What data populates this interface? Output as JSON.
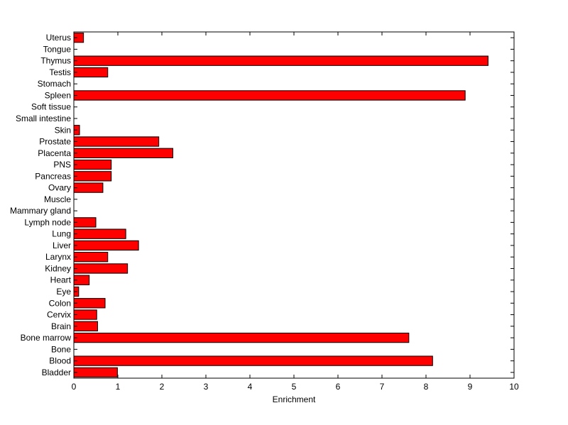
{
  "chart_data": {
    "type": "bar",
    "orientation": "horizontal",
    "title": "",
    "xlabel": "Enrichment",
    "ylabel": "",
    "xlim": [
      0,
      10
    ],
    "xticks": [
      "0",
      "1",
      "2",
      "3",
      "4",
      "5",
      "6",
      "7",
      "8",
      "9",
      "10"
    ],
    "grid": false,
    "bar_color": "#ff0000",
    "categories": [
      "Uterus",
      "Tongue",
      "Thymus",
      "Testis",
      "Stomach",
      "Spleen",
      "Soft tissue",
      "Small intestine",
      "Skin",
      "Prostate",
      "Placenta",
      "PNS",
      "Pancreas",
      "Ovary",
      "Muscle",
      "Mammary gland",
      "Lymph node",
      "Lung",
      "Liver",
      "Larynx",
      "Kidney",
      "Heart",
      "Eye",
      "Colon",
      "Cervix",
      "Brain",
      "Bone marrow",
      "Bone",
      "Blood",
      "Bladder"
    ],
    "values": [
      0.22,
      0,
      9.41,
      0.77,
      0,
      8.89,
      0,
      0,
      0.13,
      1.93,
      2.25,
      0.85,
      0.85,
      0.66,
      0,
      0,
      0.5,
      1.18,
      1.47,
      0.77,
      1.22,
      0.35,
      0.11,
      0.71,
      0.52,
      0.54,
      7.61,
      0,
      8.15,
      0.99
    ]
  }
}
